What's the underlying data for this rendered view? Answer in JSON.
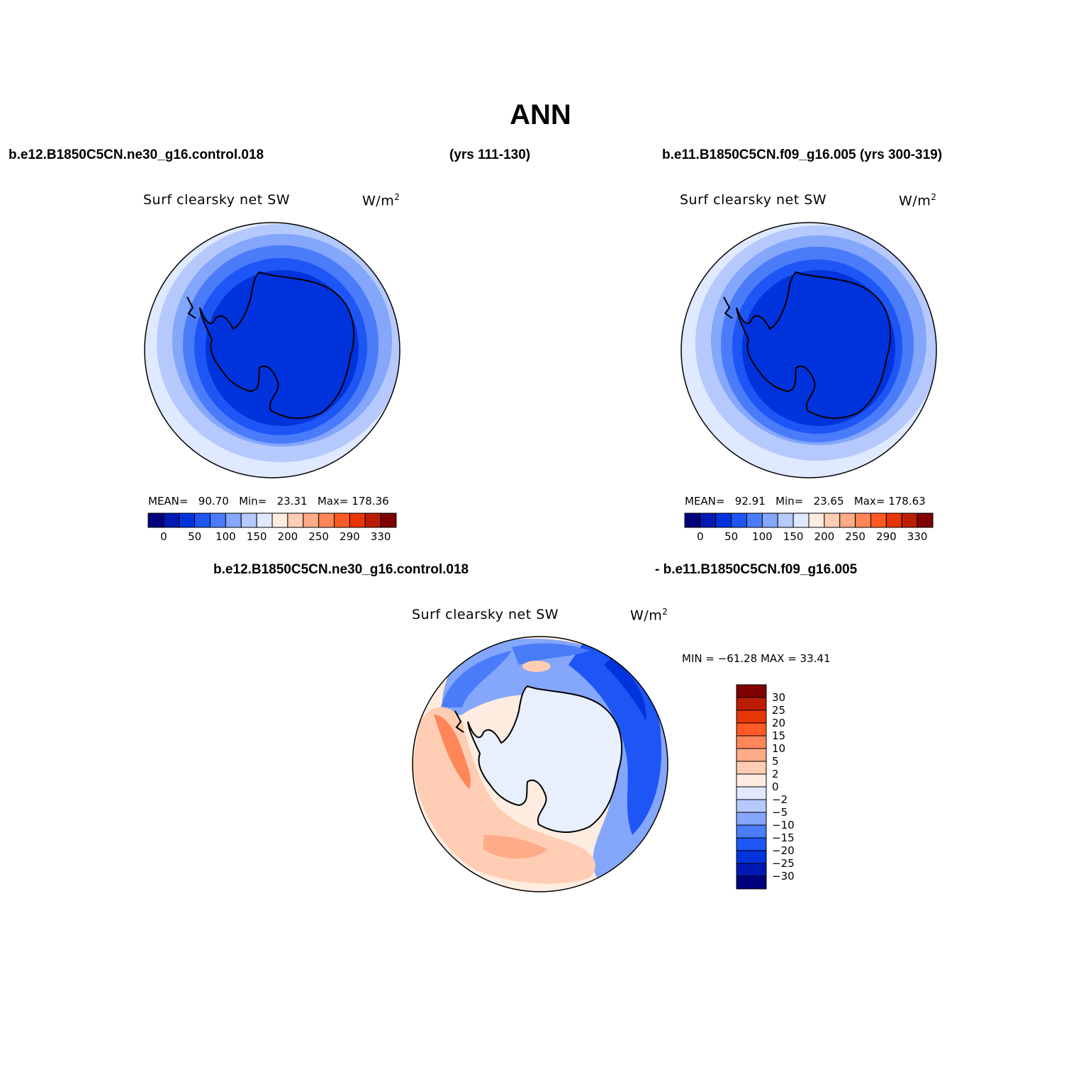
{
  "figure": {
    "title": "ANN",
    "case1_name": "b.e12.B1850C5CN.ne30_g16.control.018",
    "case1_years": "(yrs 111-130)",
    "case2_label": "b.e11.B1850C5CN.f09_g16.005 (yrs 300-319)",
    "diff_title_left": "b.e12.B1850C5CN.ne30_g16.control.018",
    "diff_title_right": "- b.e11.B1850C5CN.f09_g16.005"
  },
  "panels": [
    {
      "id": "case1",
      "variable": "Surf clearsky net SW",
      "units": "W/m",
      "units_exp": "2",
      "mean_label": "MEAN=",
      "mean": "90.70",
      "min_label": "Min=",
      "min": "23.31",
      "max_label": "Max=",
      "max": "178.36"
    },
    {
      "id": "case2",
      "variable": "Surf clearsky net SW",
      "units": "W/m",
      "units_exp": "2",
      "mean_label": "MEAN=",
      "mean": "92.91",
      "min_label": "Min=",
      "min": "23.65",
      "max_label": "Max=",
      "max": "178.63"
    },
    {
      "id": "diff",
      "variable": "Surf clearsky net SW",
      "units": "W/m",
      "units_exp": "2",
      "minmax_text": "MIN = −61.28 MAX =   33.41"
    }
  ],
  "colorbar_abs": {
    "colors": [
      "#00007f",
      "#0019b3",
      "#0033dc",
      "#1e55f5",
      "#4a7cfa",
      "#84a6fb",
      "#b6c9fd",
      "#dfe9ff",
      "#ffece0",
      "#ffcdb3",
      "#ffab88",
      "#ff8658",
      "#ff5a26",
      "#e83506",
      "#bc1d02",
      "#7f0000"
    ],
    "labels": [
      "0",
      "50",
      "100",
      "150",
      "200",
      "250",
      "290",
      "330"
    ]
  },
  "colorbar_diff": {
    "colors": [
      "#7f0000",
      "#bc1d02",
      "#e83506",
      "#ff5a26",
      "#ff8658",
      "#ffab88",
      "#ffcdb3",
      "#ffece0",
      "#dfe9ff",
      "#b6c9fd",
      "#84a6fb",
      "#4a7cfa",
      "#1e55f5",
      "#0033dc",
      "#0019b3",
      "#00007f"
    ],
    "labels": [
      "30",
      "25",
      "20",
      "15",
      "10",
      "5",
      "2",
      "0",
      "−2",
      "−5",
      "−10",
      "−15",
      "−20",
      "−25",
      "−30"
    ]
  }
}
